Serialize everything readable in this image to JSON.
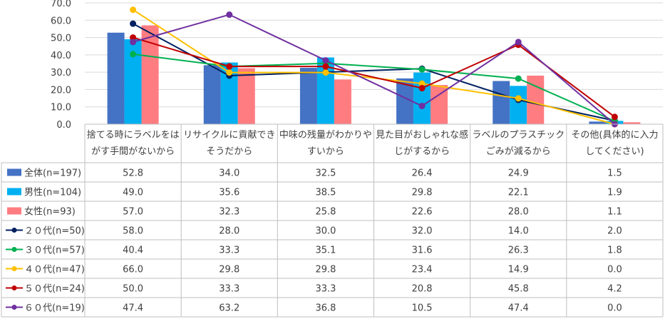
{
  "chart_data": {
    "type": "bar",
    "combo": true,
    "ylim": [
      0,
      70
    ],
    "y_ticks": [
      "0.0",
      "10.0",
      "20.0",
      "30.0",
      "40.0",
      "50.0",
      "60.0",
      "70.0"
    ],
    "grid": true,
    "legend": "data-table-left",
    "categories": [
      [
        "捨てる時にラベルをは",
        "がす手間がないから"
      ],
      [
        "リサイクルに貢献でき",
        "そうだから"
      ],
      [
        "中味の残量がわかりや",
        "すいから"
      ],
      [
        "見た目がおしゃれな感",
        "じがするから"
      ],
      [
        "ラベルのプラスチック",
        "ごみが減るから"
      ],
      [
        "その他(具体的に入力",
        "してください)"
      ]
    ],
    "series": [
      {
        "name": "全体(n=197)",
        "kind": "bar",
        "color": "#4472C4",
        "values": [
          52.8,
          34.0,
          32.5,
          26.4,
          24.9,
          1.5
        ],
        "labels": [
          "52.8",
          "34.0",
          "32.5",
          "26.4",
          "24.9",
          "1.5"
        ]
      },
      {
        "name": "男性(n=104)",
        "kind": "bar",
        "color": "#00B0F0",
        "values": [
          49.0,
          35.6,
          38.5,
          29.8,
          22.1,
          1.9
        ],
        "labels": [
          "49.0",
          "35.6",
          "38.5",
          "29.8",
          "22.1",
          "1.9"
        ]
      },
      {
        "name": "女性(n=93)",
        "kind": "bar",
        "color": "#FF7C80",
        "values": [
          57.0,
          32.3,
          25.8,
          22.6,
          28.0,
          1.1
        ],
        "labels": [
          "57.0",
          "32.3",
          "25.8",
          "22.6",
          "28.0",
          "1.1"
        ]
      },
      {
        "name": "２０代(n=50)",
        "kind": "line",
        "color": "#002060",
        "values": [
          58.0,
          28.0,
          30.0,
          32.0,
          14.0,
          2.0
        ],
        "labels": [
          "58.0",
          "28.0",
          "30.0",
          "32.0",
          "14.0",
          "2.0"
        ]
      },
      {
        "name": "３０代(n=57)",
        "kind": "line",
        "color": "#00B050",
        "values": [
          40.4,
          33.3,
          35.1,
          31.6,
          26.3,
          1.8
        ],
        "labels": [
          "40.4",
          "33.3",
          "35.1",
          "31.6",
          "26.3",
          "1.8"
        ]
      },
      {
        "name": "４０代(n=47)",
        "kind": "line",
        "color": "#FFC000",
        "values": [
          66.0,
          29.8,
          29.8,
          23.4,
          14.9,
          0.0
        ],
        "labels": [
          "66.0",
          "29.8",
          "29.8",
          "23.4",
          "14.9",
          "0.0"
        ]
      },
      {
        "name": "５０代(n=24)",
        "kind": "line",
        "color": "#C00000",
        "values": [
          50.0,
          33.3,
          33.3,
          20.8,
          45.8,
          4.2
        ],
        "labels": [
          "50.0",
          "33.3",
          "33.3",
          "20.8",
          "45.8",
          "4.2"
        ]
      },
      {
        "name": "６０代(n=19)",
        "kind": "line",
        "color": "#7030A0",
        "values": [
          47.4,
          63.2,
          36.8,
          10.5,
          47.4,
          0.0
        ],
        "labels": [
          "47.4",
          "63.2",
          "36.8",
          "10.5",
          "47.4",
          "0.0"
        ]
      }
    ]
  }
}
